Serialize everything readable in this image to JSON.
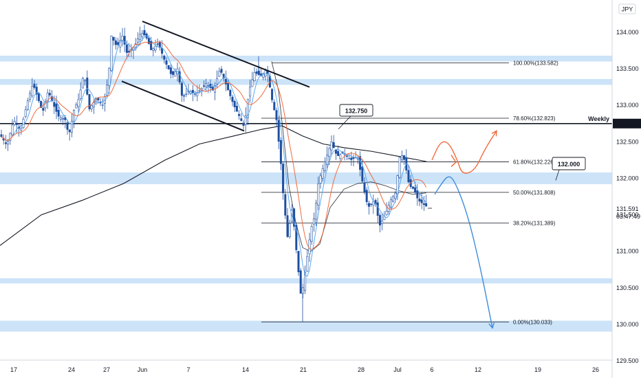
{
  "chart_data": {
    "type": "candlestick",
    "currency_label": "JPY",
    "y_range": [
      129.45,
      134.3
    ],
    "y_ticks": [
      "134.000",
      "133.500",
      "133.000",
      "132.500",
      "132.000",
      "131.500",
      "131.000",
      "130.500",
      "130.000",
      "129.500"
    ],
    "x_ticks": [
      "17",
      "24",
      "27",
      "Jun",
      "7",
      "14",
      "21",
      "28",
      "Jul",
      "6",
      "12",
      "19",
      "26"
    ],
    "current_price": "131.591",
    "countdown": "03:47:49",
    "weekly": {
      "label": "Weekly",
      "price": 132.75,
      "tag": "132.750"
    },
    "callouts": [
      {
        "text": "132.750",
        "price": 132.75
      },
      {
        "text": "132.000",
        "price": 132.0
      }
    ],
    "fib_levels": [
      {
        "label": "100.00%(133.582)",
        "price": 133.582
      },
      {
        "label": "78.60%(132.823)",
        "price": 132.823
      },
      {
        "label": "61.80%(132.226)",
        "price": 132.226
      },
      {
        "label": "50.00%(131.808)",
        "price": 131.808
      },
      {
        "label": "38.20%(131.389)",
        "price": 131.389
      },
      {
        "label": "0.00%(130.033)",
        "price": 130.033
      }
    ],
    "zones": [
      {
        "low": 133.6,
        "high": 133.68
      },
      {
        "low": 133.28,
        "high": 133.36
      },
      {
        "low": 131.92,
        "high": 132.08
      },
      {
        "low": 130.56,
        "high": 130.63
      },
      {
        "low": 129.9,
        "high": 130.05
      }
    ],
    "channel": {
      "upper": [
        [
          207,
          134.15
        ],
        [
          450,
          133.25
        ]
      ],
      "lower": [
        [
          177,
          133.33
        ],
        [
          355,
          132.65
        ]
      ]
    },
    "ma_long": [
      [
        0,
        131.08
      ],
      [
        60,
        131.5
      ],
      [
        120,
        131.7
      ],
      [
        180,
        131.93
      ],
      [
        240,
        132.25
      ],
      [
        290,
        132.47
      ],
      [
        340,
        132.58
      ],
      [
        380,
        132.67
      ],
      [
        410,
        132.72
      ],
      [
        440,
        132.58
      ],
      [
        470,
        132.47
      ],
      [
        500,
        132.42
      ],
      [
        540,
        132.37
      ],
      [
        580,
        132.3
      ],
      [
        620,
        132.23
      ]
    ],
    "ma_mid": [
      [
        395,
        133.6
      ],
      [
        405,
        133.2
      ],
      [
        412,
        132.6
      ],
      [
        420,
        131.9
      ],
      [
        430,
        131.4
      ],
      [
        440,
        131.05
      ],
      [
        452,
        131.0
      ],
      [
        465,
        131.1
      ],
      [
        480,
        131.6
      ],
      [
        500,
        131.85
      ],
      [
        520,
        131.93
      ],
      [
        540,
        131.95
      ],
      [
        560,
        131.9
      ],
      [
        580,
        131.83
      ],
      [
        600,
        131.78
      ],
      [
        620,
        131.8
      ]
    ],
    "price_path": [
      [
        0,
        132.6
      ],
      [
        10,
        132.45
      ],
      [
        20,
        132.8
      ],
      [
        30,
        132.65
      ],
      [
        40,
        133.05
      ],
      [
        48,
        133.3
      ],
      [
        55,
        133.1
      ],
      [
        62,
        132.9
      ],
      [
        70,
        133.2
      ],
      [
        78,
        133.0
      ],
      [
        85,
        132.85
      ],
      [
        95,
        132.8
      ],
      [
        100,
        132.58
      ],
      [
        108,
        132.95
      ],
      [
        115,
        133.1
      ],
      [
        122,
        133.45
      ],
      [
        130,
        132.95
      ],
      [
        140,
        133.1
      ],
      [
        150,
        133.0
      ],
      [
        158,
        133.4
      ],
      [
        162,
        133.95
      ],
      [
        170,
        133.8
      ],
      [
        178,
        133.95
      ],
      [
        185,
        133.7
      ],
      [
        195,
        133.8
      ],
      [
        205,
        134.0
      ],
      [
        212,
        133.95
      ],
      [
        220,
        133.75
      ],
      [
        230,
        133.85
      ],
      [
        240,
        133.6
      ],
      [
        250,
        133.4
      ],
      [
        258,
        133.5
      ],
      [
        265,
        133.1
      ],
      [
        275,
        133.2
      ],
      [
        285,
        133.15
      ],
      [
        300,
        133.3
      ],
      [
        310,
        133.2
      ],
      [
        320,
        133.5
      ],
      [
        330,
        133.25
      ],
      [
        340,
        133.0
      ],
      [
        348,
        132.85
      ],
      [
        355,
        132.7
      ],
      [
        362,
        133.2
      ],
      [
        370,
        133.45
      ],
      [
        380,
        133.4
      ],
      [
        388,
        133.5
      ],
      [
        395,
        133.1
      ],
      [
        402,
        132.8
      ],
      [
        408,
        132.25
      ],
      [
        412,
        131.75
      ],
      [
        418,
        131.2
      ],
      [
        425,
        131.6
      ],
      [
        432,
        130.9
      ],
      [
        438,
        130.35
      ],
      [
        445,
        130.8
      ],
      [
        452,
        131.3
      ],
      [
        458,
        131.5
      ],
      [
        462,
        131.9
      ],
      [
        468,
        132.1
      ],
      [
        475,
        132.3
      ],
      [
        482,
        132.5
      ],
      [
        490,
        132.3
      ],
      [
        500,
        132.35
      ],
      [
        510,
        132.25
      ],
      [
        520,
        132.3
      ],
      [
        528,
        131.9
      ],
      [
        535,
        131.6
      ],
      [
        545,
        131.7
      ],
      [
        552,
        131.35
      ],
      [
        560,
        131.5
      ],
      [
        568,
        131.7
      ],
      [
        575,
        131.8
      ],
      [
        582,
        132.35
      ],
      [
        588,
        132.25
      ],
      [
        595,
        131.9
      ],
      [
        602,
        131.85
      ],
      [
        608,
        131.7
      ],
      [
        615,
        131.65
      ],
      [
        622,
        131.6
      ]
    ],
    "projection_up": [
      [
        628,
        132.25
      ],
      [
        640,
        132.5
      ],
      [
        652,
        132.5
      ],
      [
        665,
        132.25
      ],
      [
        672,
        132.05
      ],
      [
        690,
        132.1
      ],
      [
        705,
        132.4
      ],
      [
        722,
        132.65
      ]
    ],
    "projection_down": [
      [
        632,
        131.78
      ],
      [
        640,
        131.9
      ],
      [
        652,
        132.05
      ],
      [
        662,
        131.95
      ],
      [
        680,
        131.5
      ],
      [
        698,
        130.8
      ],
      [
        716,
        129.95
      ]
    ]
  }
}
